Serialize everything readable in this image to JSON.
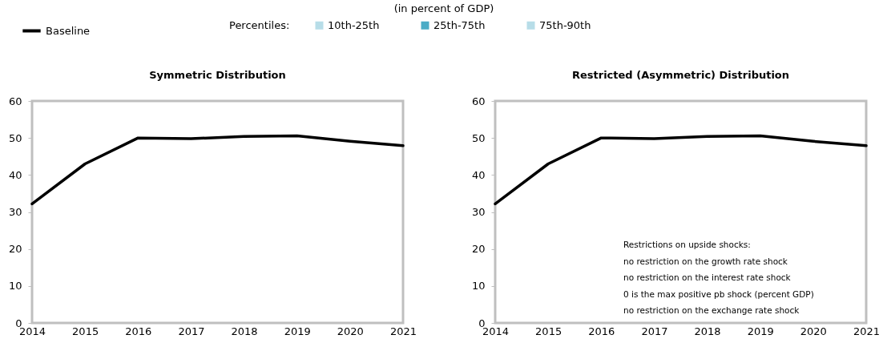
{
  "chart_data": [
    {
      "type": "line",
      "title": "Symmetric Distribution",
      "subtitle": "(in percent of GDP)",
      "legend_title": "Percentiles:",
      "legend": "top",
      "x": [
        2014,
        2015,
        2016,
        2017,
        2018,
        2019,
        2020,
        2021
      ],
      "xlim": [
        2014,
        2021
      ],
      "xticks": [
        2014,
        2015,
        2016,
        2017,
        2018,
        2019,
        2020,
        2021
      ],
      "ylim": [
        0,
        60
      ],
      "yticks": [
        0,
        10,
        20,
        30,
        40,
        50,
        60
      ],
      "grid": false,
      "series": [
        {
          "name": "Baseline",
          "color": "#000000",
          "values": [
            32.2,
            43,
            50,
            49.8,
            50.4,
            50.6,
            49.1,
            47.9
          ]
        },
        {
          "name": "10th-25th",
          "type": "area",
          "color": "#b7dde8",
          "values": [
            null,
            null,
            null,
            null,
            null,
            null,
            null,
            null
          ]
        },
        {
          "name": "25th-75th",
          "type": "area",
          "color": "#4bacc6",
          "values": [
            null,
            null,
            null,
            null,
            null,
            null,
            null,
            null
          ]
        },
        {
          "name": "75th-90th",
          "type": "area",
          "color": "#b7dde8",
          "values": [
            null,
            null,
            null,
            null,
            null,
            null,
            null,
            null
          ]
        }
      ]
    },
    {
      "type": "line",
      "title": "Restricted (Asymmetric) Distribution",
      "x": [
        2014,
        2015,
        2016,
        2017,
        2018,
        2019,
        2020,
        2021
      ],
      "xlim": [
        2014,
        2021
      ],
      "xticks": [
        2014,
        2015,
        2016,
        2017,
        2018,
        2019,
        2020,
        2021
      ],
      "ylim": [
        0,
        60
      ],
      "yticks": [
        0,
        10,
        20,
        30,
        40,
        50,
        60
      ],
      "grid": false,
      "annotations": [
        "Restrictions on upside shocks:",
        "no restriction on the growth rate shock",
        "no restriction on the interest rate shock",
        "0 is the max positive pb shock (percent GDP)",
        "no restriction on the exchange rate shock"
      ],
      "series": [
        {
          "color": "#000000",
          "values": [
            32.2,
            43,
            50,
            49.8,
            50.4,
            50.6,
            49.1,
            47.9
          ]
        }
      ]
    }
  ]
}
